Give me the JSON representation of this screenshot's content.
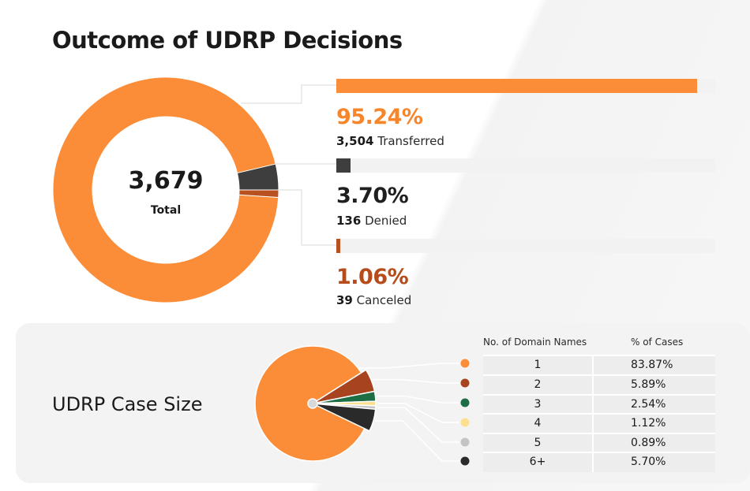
{
  "title": "Outcome of UDRP Decisions",
  "donut_total": "3,679",
  "donut_total_label": "Total",
  "case_title": "UDRP Case Size",
  "table_headers": {
    "names": "No. of Domain Names",
    "cases": "% of Cases"
  },
  "chart_data": [
    {
      "type": "donut",
      "title": "Outcome of UDRP Decisions",
      "total": 3679,
      "categories": [
        "Transferred",
        "Denied",
        "Canceled"
      ],
      "counts": [
        3504,
        136,
        39
      ],
      "counts_text": [
        "3,504",
        "136",
        "39"
      ],
      "percents": [
        95.24,
        3.7,
        1.06
      ],
      "percents_text": [
        "95.24%",
        "3.70%",
        "1.06%"
      ],
      "colors": [
        "#fb8d38",
        "#3e3e3e",
        "#b8501f"
      ],
      "label_colors": [
        "#f7862a",
        "#1f1f1f",
        "#b54c1a"
      ]
    },
    {
      "type": "pie",
      "title": "UDRP Case Size",
      "categories": [
        "1",
        "2",
        "3",
        "4",
        "5",
        "6+"
      ],
      "values": [
        83.87,
        5.89,
        2.54,
        1.12,
        0.89,
        5.7
      ],
      "values_text": [
        "83.87%",
        "5.89%",
        "2.54%",
        "1.12%",
        "0.89%",
        "5.70%"
      ],
      "colors": [
        "#fb8d38",
        "#a8431f",
        "#1e6e45",
        "#fbe08f",
        "#c4c4c4",
        "#2a2a2a"
      ]
    }
  ]
}
